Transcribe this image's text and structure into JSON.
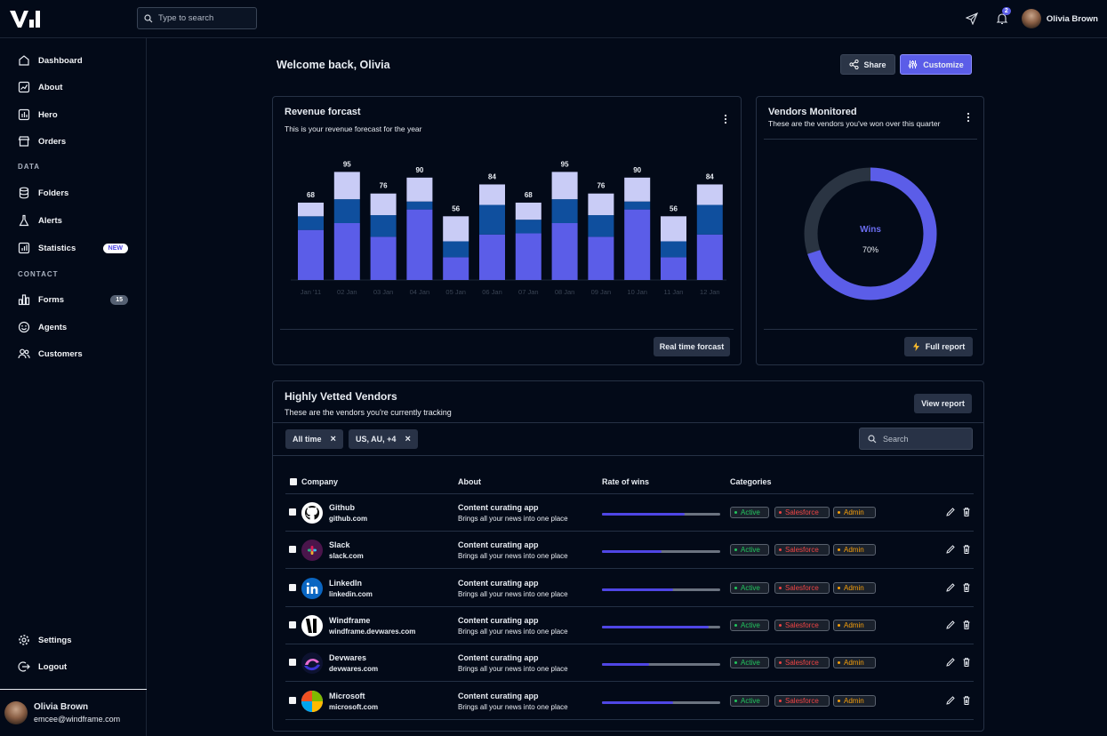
{
  "search": {
    "placeholder": "Type to search"
  },
  "header": {
    "user_name": "Olivia Brown",
    "notif_count": "2"
  },
  "sidebar": {
    "items": [
      {
        "label": "Dashboard"
      },
      {
        "label": "About"
      },
      {
        "label": "Hero"
      },
      {
        "label": "Orders"
      },
      {
        "label": "Folders"
      },
      {
        "label": "Alerts"
      },
      {
        "label": "Statistics",
        "badge": "NEW"
      },
      {
        "label": "Forms",
        "badge": "15"
      },
      {
        "label": "Agents"
      },
      {
        "label": "Customers"
      },
      {
        "label": "Settings"
      },
      {
        "label": "Logout"
      }
    ],
    "section_data": "DATA",
    "section_contact": "CONTACT",
    "user": {
      "name": "Olivia Brown",
      "email": "emcee@windframe.com"
    }
  },
  "main": {
    "welcome": "Welcome back, Olivia",
    "share_label": "Share",
    "customize_label": "Customize"
  },
  "revenue": {
    "title": "Revenue forcast",
    "subtitle": "This is your revenue forecast for the year",
    "button": "Real time forcast"
  },
  "chart_data": {
    "type": "bar",
    "stacked": true,
    "categories": [
      "Jan '11",
      "02 Jan",
      "03 Jan",
      "04 Jan",
      "05 Jan",
      "06 Jan",
      "07 Jan",
      "08 Jan",
      "09 Jan",
      "10 Jan",
      "11 Jan",
      "12 Jan"
    ],
    "totals": [
      68,
      95,
      76,
      90,
      56,
      84,
      68,
      95,
      76,
      90,
      56,
      84
    ],
    "series": [
      {
        "values": [
          44,
          50,
          38,
          62,
          20,
          40,
          41,
          50,
          38,
          62,
          20,
          40
        ]
      },
      {
        "values": [
          12,
          21,
          19,
          7,
          14,
          26,
          12,
          21,
          19,
          7,
          14,
          26
        ]
      },
      {
        "values": [
          12,
          24,
          19,
          21,
          22,
          18,
          15,
          24,
          19,
          21,
          22,
          18
        ]
      }
    ],
    "colors": [
      "#5b5de8",
      "#0f4f9e",
      "#c9ccf6"
    ]
  },
  "vendors": {
    "title": "Vendors Monitored",
    "subtitle": "These are the vendors you've won over this quarter",
    "donut_label": "Wins",
    "donut_value": "70%",
    "donut_fraction": 0.7,
    "button": "Full report"
  },
  "table": {
    "title": "Highly Vetted Vendors",
    "subtitle": "These are the vendors you're currently tracking",
    "view_report": "View report",
    "filters": [
      "All time",
      "US, AU, +4"
    ],
    "search_placeholder": "Search",
    "columns": [
      "Company",
      "About",
      "Rate of wins",
      "Categories"
    ],
    "tags": [
      "Active",
      "Salesforce",
      "Admin"
    ],
    "rows": [
      {
        "name": "Github",
        "url": "github.com",
        "about": "Content curating app",
        "desc": "Brings all your news into one place",
        "rate": 0.7
      },
      {
        "name": "Slack",
        "url": "slack.com",
        "about": "Content curating app",
        "desc": "Brings all your news into one place",
        "rate": 0.5
      },
      {
        "name": "LinkedIn",
        "url": "linkedin.com",
        "about": "Content curating app",
        "desc": "Brings all your news into one place",
        "rate": 0.6
      },
      {
        "name": "Windframe",
        "url": "windframe.devwares.com",
        "about": "Content curating app",
        "desc": "Brings all your news into one place",
        "rate": 0.9
      },
      {
        "name": "Devwares",
        "url": "devwares.com",
        "about": "Content curating app",
        "desc": "Brings all your news into one place",
        "rate": 0.4
      },
      {
        "name": "Microsoft",
        "url": "microsoft.com",
        "about": "Content curating app",
        "desc": "Brings all your news into one place",
        "rate": 0.6
      }
    ]
  }
}
